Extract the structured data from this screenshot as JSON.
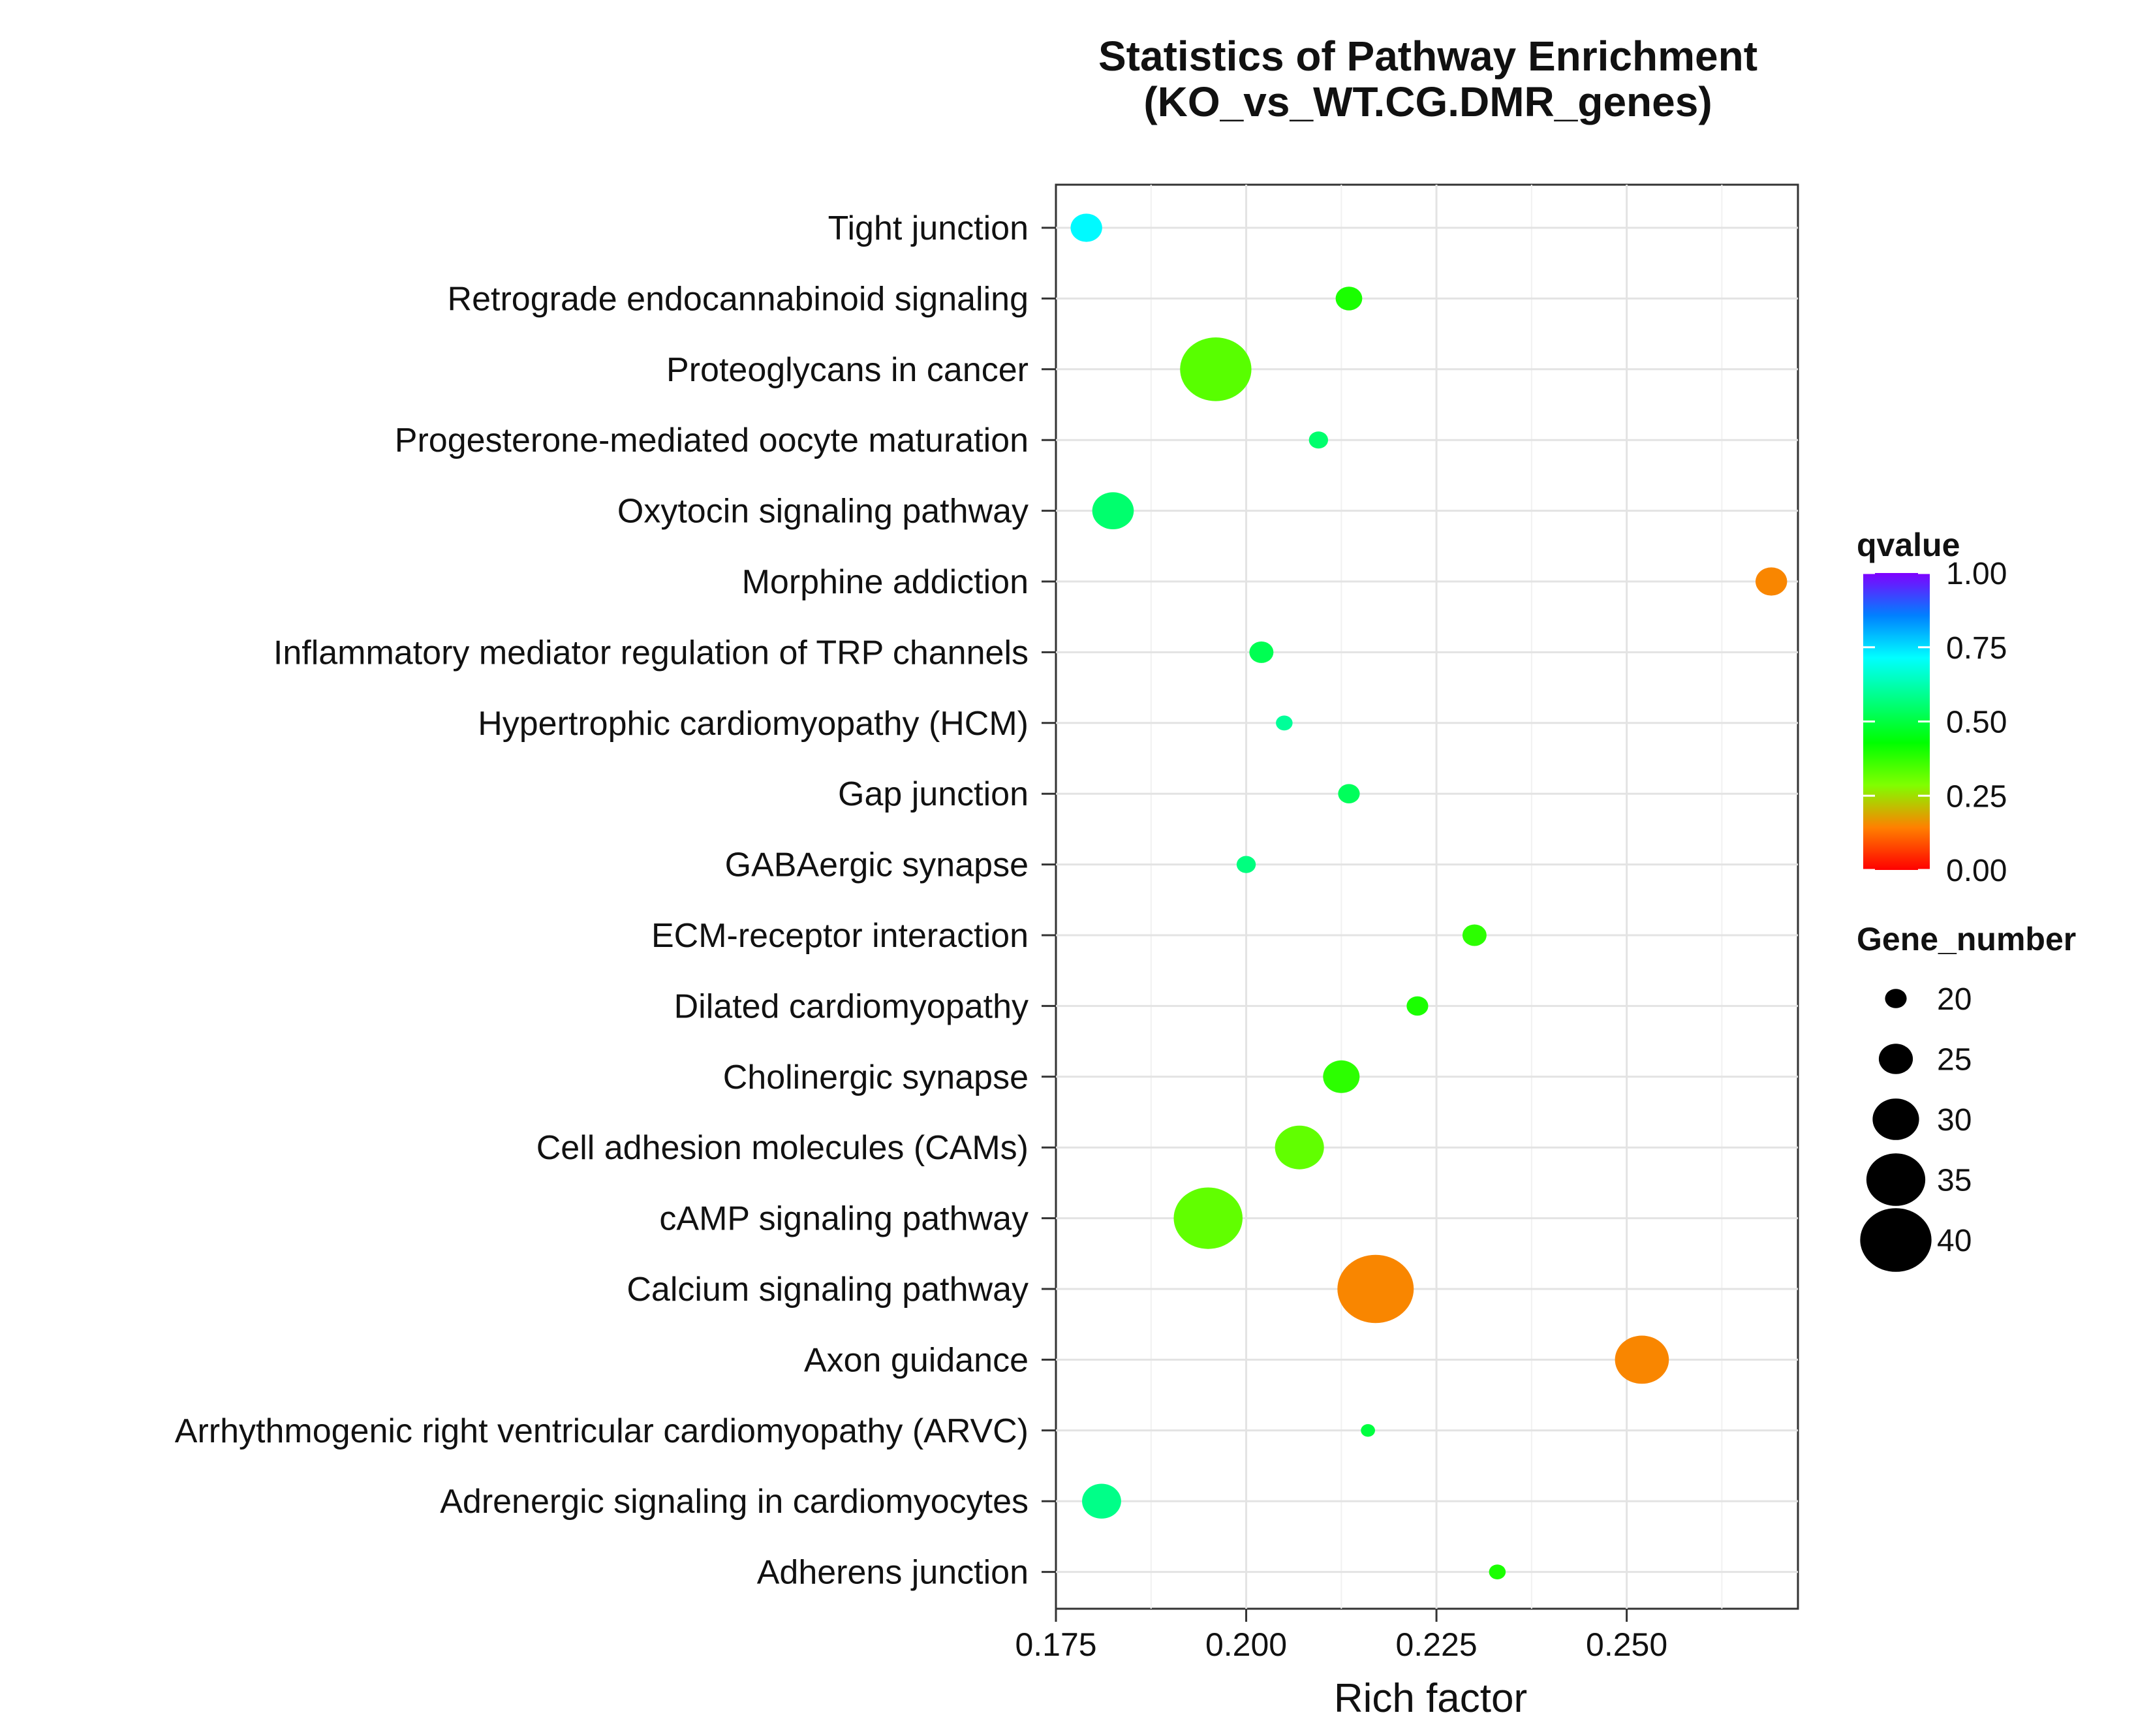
{
  "chart_data": {
    "type": "scatter",
    "title": "Statistics of Pathway Enrichment",
    "subtitle": "(KO_vs_WT.CG.DMR_genes)",
    "xlabel": "Rich factor",
    "ylabel": "",
    "xlim": [
      0.175,
      0.2725
    ],
    "xticks": [
      0.175,
      0.2,
      0.225,
      0.25
    ],
    "xtick_labels": [
      "0.175",
      "0.200",
      "0.225",
      "0.250"
    ],
    "grid": true,
    "points": [
      {
        "pathway": "Tight junction",
        "rich_factor": 0.179,
        "qvalue": 0.72,
        "gene_number": 24
      },
      {
        "pathway": "Retrograde endocannabinoid signaling",
        "rich_factor": 0.2135,
        "qvalue": 0.4,
        "gene_number": 22
      },
      {
        "pathway": "Proteoglycans in cancer",
        "rich_factor": 0.196,
        "qvalue": 0.33,
        "gene_number": 40
      },
      {
        "pathway": "Progesterone-mediated oocyte maturation",
        "rich_factor": 0.2095,
        "qvalue": 0.55,
        "gene_number": 19
      },
      {
        "pathway": "Oxytocin signaling pathway",
        "rich_factor": 0.1825,
        "qvalue": 0.55,
        "gene_number": 28
      },
      {
        "pathway": "Morphine addiction",
        "rich_factor": 0.269,
        "qvalue": 0.15,
        "gene_number": 24
      },
      {
        "pathway": "Inflammatory mediator regulation of TRP channels",
        "rich_factor": 0.202,
        "qvalue": 0.52,
        "gene_number": 21
      },
      {
        "pathway": "Hypertrophic cardiomyopathy (HCM)",
        "rich_factor": 0.205,
        "qvalue": 0.6,
        "gene_number": 18
      },
      {
        "pathway": "Gap junction",
        "rich_factor": 0.2135,
        "qvalue": 0.53,
        "gene_number": 20
      },
      {
        "pathway": "GABAergic synapse",
        "rich_factor": 0.2,
        "qvalue": 0.57,
        "gene_number": 19
      },
      {
        "pathway": "ECM-receptor interaction",
        "rich_factor": 0.23,
        "qvalue": 0.38,
        "gene_number": 21
      },
      {
        "pathway": "Dilated cardiomyopathy",
        "rich_factor": 0.2225,
        "qvalue": 0.4,
        "gene_number": 20
      },
      {
        "pathway": "Cholinergic synapse",
        "rich_factor": 0.2125,
        "qvalue": 0.38,
        "gene_number": 26
      },
      {
        "pathway": "Cell adhesion molecules (CAMs)",
        "rich_factor": 0.207,
        "qvalue": 0.32,
        "gene_number": 31
      },
      {
        "pathway": "cAMP signaling pathway",
        "rich_factor": 0.195,
        "qvalue": 0.32,
        "gene_number": 39
      },
      {
        "pathway": "Calcium signaling pathway",
        "rich_factor": 0.217,
        "qvalue": 0.15,
        "gene_number": 42
      },
      {
        "pathway": "Axon guidance",
        "rich_factor": 0.252,
        "qvalue": 0.15,
        "gene_number": 33
      },
      {
        "pathway": "Arrhythmogenic right ventricular cardiomyopathy (ARVC)",
        "rich_factor": 0.216,
        "qvalue": 0.5,
        "gene_number": 17
      },
      {
        "pathway": "Adrenergic signaling in cardiomyocytes",
        "rich_factor": 0.181,
        "qvalue": 0.58,
        "gene_number": 27
      },
      {
        "pathway": "Adherens junction",
        "rich_factor": 0.233,
        "qvalue": 0.4,
        "gene_number": 18
      }
    ],
    "legend": {
      "qvalue": {
        "title": "qvalue",
        "range": [
          0,
          1
        ],
        "ticks": [
          "1.00",
          "0.75",
          "0.50",
          "0.25",
          "0.00"
        ],
        "colors": [
          "#ff0000",
          "#ff8000",
          "#80ff00",
          "#00ff00",
          "#00ff80",
          "#00ffff",
          "#0080ff",
          "#8000ff"
        ]
      },
      "gene_number": {
        "title": "Gene_number",
        "values": [
          20,
          25,
          30,
          35,
          40
        ],
        "labels": [
          "20",
          "25",
          "30",
          "35",
          "40"
        ]
      }
    }
  }
}
